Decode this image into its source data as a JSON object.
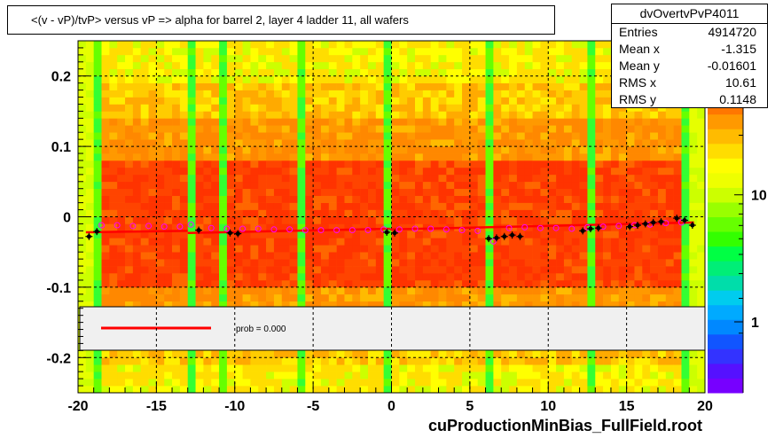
{
  "title": "<(v - vP)/tvP>  versus   vP => alpha for barrel 2, layer 4 ladder 11, all wafers",
  "stats": {
    "name": "dvOvertvPvP4011",
    "rows": [
      {
        "label": "Entries",
        "value": "4914720"
      },
      {
        "label": "Mean x",
        "value": "-1.315"
      },
      {
        "label": "Mean y",
        "value": "-0.01601"
      },
      {
        "label": "RMS x",
        "value": "10.61"
      },
      {
        "label": "RMS y",
        "value": "0.1148"
      }
    ]
  },
  "footer": "cuProductionMinBias_FullField.root",
  "legend": {
    "label": "prob = 0.000"
  },
  "colors": {
    "fit_line": "#ff0000",
    "profile_markers": "#000000",
    "open_markers": "#ff00ff"
  },
  "chart_data": {
    "type": "heatmap",
    "xlim": [
      -20,
      20
    ],
    "ylim": [
      -0.25,
      0.25
    ],
    "grid": true,
    "x_ticks": [
      "-20",
      "-15",
      "-10",
      "-5",
      "0",
      "5",
      "10",
      "15",
      "20"
    ],
    "y_ticks": [
      "0.2",
      "0.1",
      "0",
      "-0.1",
      "-0.2"
    ],
    "colorbar": {
      "scale": "log",
      "tick_labels": [
        "1",
        "10"
      ]
    },
    "profile_points": [
      [
        -19.3,
        -0.028
      ],
      [
        -18.8,
        -0.021
      ],
      [
        -12.3,
        -0.019
      ],
      [
        -10.3,
        -0.023
      ],
      [
        -9.8,
        -0.024
      ],
      [
        -0.3,
        -0.022
      ],
      [
        0.2,
        -0.023
      ],
      [
        6.2,
        -0.031
      ],
      [
        6.7,
        -0.03
      ],
      [
        7.2,
        -0.028
      ],
      [
        7.7,
        -0.026
      ],
      [
        8.2,
        -0.028
      ],
      [
        12.2,
        -0.02
      ],
      [
        12.7,
        -0.017
      ],
      [
        13.2,
        -0.016
      ],
      [
        15.2,
        -0.014
      ],
      [
        15.7,
        -0.012
      ],
      [
        16.2,
        -0.01
      ],
      [
        16.7,
        -0.008
      ],
      [
        17.2,
        -0.007
      ],
      [
        18.2,
        -0.002
      ],
      [
        18.7,
        -0.005
      ],
      [
        19.2,
        -0.012
      ]
    ],
    "open_points": [
      [
        -18.5,
        -0.012
      ],
      [
        -17.5,
        -0.012
      ],
      [
        -16.5,
        -0.013
      ],
      [
        -15.5,
        -0.013
      ],
      [
        -14.5,
        -0.014
      ],
      [
        -13.5,
        -0.014
      ],
      [
        -12.8,
        -0.011
      ],
      [
        -11.5,
        -0.016
      ],
      [
        -10.5,
        -0.017
      ],
      [
        -9.5,
        -0.017
      ],
      [
        -8.5,
        -0.017
      ],
      [
        -7.5,
        -0.018
      ],
      [
        -6.5,
        -0.018
      ],
      [
        -5.5,
        -0.019
      ],
      [
        -4.5,
        -0.019
      ],
      [
        -3.5,
        -0.019
      ],
      [
        -2.5,
        -0.019
      ],
      [
        -1.5,
        -0.019
      ],
      [
        -0.5,
        -0.018
      ],
      [
        0.5,
        -0.018
      ],
      [
        1.5,
        -0.017
      ],
      [
        2.5,
        -0.017
      ],
      [
        3.5,
        -0.018
      ],
      [
        4.5,
        -0.019
      ],
      [
        5.5,
        -0.02
      ],
      [
        6.5,
        -0.035
      ],
      [
        7.5,
        -0.016
      ],
      [
        8.5,
        -0.015
      ],
      [
        9.5,
        -0.016
      ],
      [
        10.5,
        -0.016
      ],
      [
        11.5,
        -0.017
      ],
      [
        12.5,
        -0.015
      ],
      [
        13.5,
        -0.014
      ],
      [
        14.5,
        -0.013
      ],
      [
        15.5,
        -0.012
      ],
      [
        16.5,
        -0.011
      ],
      [
        17.5,
        -0.009
      ],
      [
        18.5,
        -0.008
      ]
    ],
    "fit_segments": [
      [
        [
          -19.5,
          -0.022
        ],
        [
          -13.0,
          -0.02
        ]
      ],
      [
        [
          -13.0,
          -0.023
        ],
        [
          -0.1,
          -0.017
        ]
      ],
      [
        [
          -0.1,
          -0.018
        ],
        [
          6.0,
          -0.015
        ]
      ],
      [
        [
          6.0,
          -0.015
        ],
        [
          19.3,
          -0.008
        ]
      ]
    ]
  }
}
